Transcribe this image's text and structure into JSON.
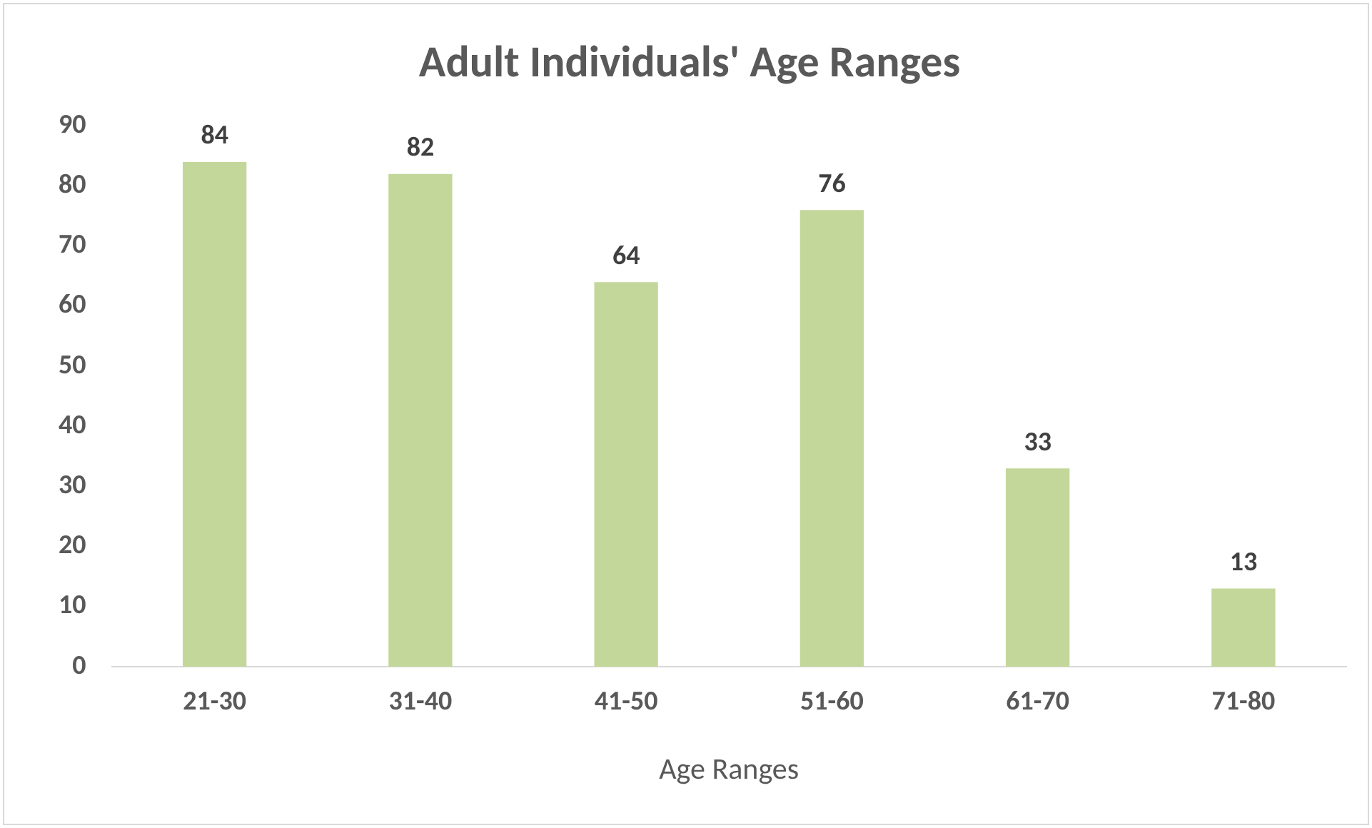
{
  "chart_data": {
    "type": "bar",
    "title": "Adult Individuals' Age Ranges",
    "xlabel": "Age Ranges",
    "categories": [
      "21-30",
      "31-40",
      "41-50",
      "51-60",
      "61-70",
      "71-80"
    ],
    "values": [
      84,
      82,
      64,
      76,
      33,
      13
    ],
    "color": "#c4d79b",
    "ylim": [
      0,
      90
    ],
    "yticks": [
      0,
      10,
      20,
      30,
      40,
      50,
      60,
      70,
      80,
      90
    ],
    "data_labels": true
  }
}
